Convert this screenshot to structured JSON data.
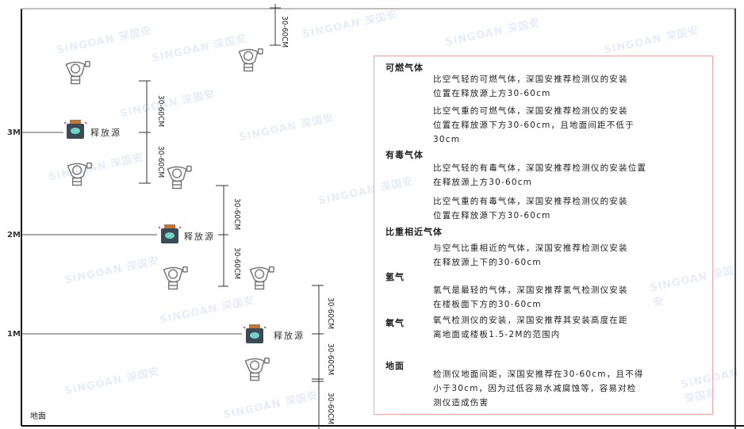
{
  "watermark": "SINGOAN 深国安",
  "levels": {
    "m3": "3M",
    "m2": "2M",
    "m1": "1M",
    "ground": "地面"
  },
  "source_label": "释放源",
  "dimension_label": "30-60CM",
  "colors": {
    "box_border": "#f2a6a6",
    "axis": "#111111",
    "source_body": "#3b4a55",
    "source_cap": "#c8742c"
  },
  "legend": {
    "combustible": {
      "title": "可燃气体",
      "lighter": [
        "比空气轻的可燃气体，深国安推荐检测仪的安装",
        "位置在释放源上方30-60cm"
      ],
      "heavier": [
        "比空气重的可燃气体，深国安推荐检测仪的安装",
        "位置在释放源下方30-60cm，且地面间距不低于",
        "30cm"
      ]
    },
    "toxic": {
      "title": "有毒气体",
      "lighter": [
        "比空气轻的有毒气体，深国安推荐检测仪的安装位置",
        "在释放源上方30-60cm"
      ],
      "heavier": [
        "比空气重的有毒气体，深国安推荐检测仪的安装",
        "位置在释放源下方30-60cm"
      ]
    },
    "similar": {
      "title": "比重相近气体",
      "text": [
        "与空气比重相近的气体，深国安推荐检测仪安装",
        "在释放源上下的30-60cm"
      ]
    },
    "hydrogen": {
      "title": "氢气",
      "text": [
        "氢气是最轻的气体，深国安推荐氢气检测仪安装",
        "在楼板面下方的30-60cm"
      ]
    },
    "oxygen": {
      "title": "氧气",
      "text": [
        "氧气检测仪的安装，深国安推荐其安装高度在距",
        "离地面或楼板1.5-2M的范围内"
      ]
    },
    "ground": {
      "title": "地面",
      "text": [
        "检测仪地面间距，深国安推荐在30-60cm，且不得",
        "小于30cm，因为过低容易水减腐蚀等，容易对检",
        "测仪造成伤害"
      ]
    }
  }
}
